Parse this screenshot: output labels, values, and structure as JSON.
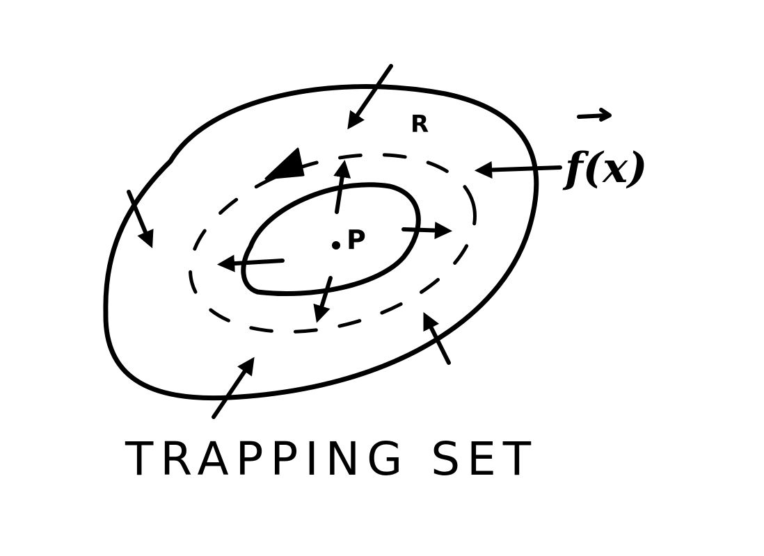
{
  "diagram": {
    "point_label": "P",
    "region_label": "R",
    "vector_field_label": "f(x)",
    "caption": "TRAPPING SET",
    "stroke_color": "#000000",
    "background_color": "#ffffff"
  }
}
